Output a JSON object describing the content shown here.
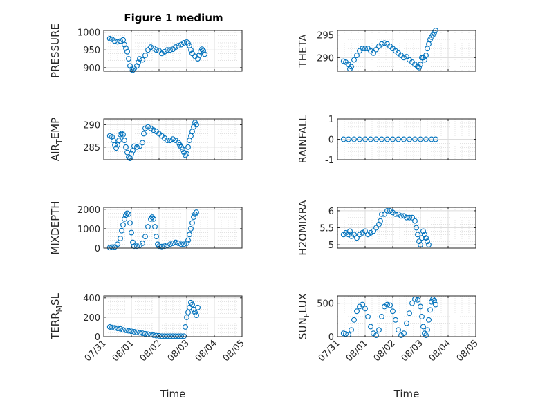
{
  "figure": {
    "title": "Figure 1 medium"
  },
  "chart_data": [
    {
      "type": "scatter",
      "ylabel": "PRESSURE",
      "yticks": [
        900,
        950,
        1000
      ],
      "ylim": [
        890,
        1005
      ],
      "xlim": [
        0,
        5
      ],
      "xticks": [
        0,
        1,
        2,
        3,
        4,
        5
      ],
      "grid": true,
      "points": [
        [
          0.22,
          982
        ],
        [
          0.3,
          980
        ],
        [
          0.4,
          975
        ],
        [
          0.5,
          973
        ],
        [
          0.6,
          975
        ],
        [
          0.7,
          978
        ],
        [
          0.75,
          965
        ],
        [
          0.8,
          955
        ],
        [
          0.85,
          945
        ],
        [
          0.9,
          925
        ],
        [
          0.95,
          905
        ],
        [
          1.0,
          895
        ],
        [
          1.05,
          893
        ],
        [
          1.1,
          898
        ],
        [
          1.2,
          905
        ],
        [
          1.25,
          915
        ],
        [
          1.3,
          925
        ],
        [
          1.4,
          922
        ],
        [
          1.5,
          935
        ],
        [
          1.6,
          950
        ],
        [
          1.7,
          958
        ],
        [
          1.8,
          955
        ],
        [
          1.9,
          950
        ],
        [
          2.0,
          948
        ],
        [
          2.1,
          940
        ],
        [
          2.2,
          945
        ],
        [
          2.3,
          950
        ],
        [
          2.4,
          950
        ],
        [
          2.5,
          952
        ],
        [
          2.6,
          958
        ],
        [
          2.7,
          962
        ],
        [
          2.8,
          965
        ],
        [
          2.9,
          970
        ],
        [
          3.0,
          972
        ],
        [
          3.05,
          968
        ],
        [
          3.1,
          962
        ],
        [
          3.15,
          950
        ],
        [
          3.2,
          940
        ],
        [
          3.3,
          932
        ],
        [
          3.4,
          925
        ],
        [
          3.45,
          935
        ],
        [
          3.5,
          945
        ],
        [
          3.55,
          952
        ],
        [
          3.6,
          948
        ],
        [
          3.65,
          938
        ]
      ]
    },
    {
      "type": "scatter",
      "ylabel": "THETA",
      "yticks": [
        290,
        295
      ],
      "ylim": [
        287,
        296
      ],
      "xlim": [
        0,
        5
      ],
      "xticks": [
        0,
        1,
        2,
        3,
        4,
        5
      ],
      "grid": true,
      "points": [
        [
          0.22,
          289.2
        ],
        [
          0.3,
          289
        ],
        [
          0.4,
          288.5
        ],
        [
          0.45,
          287.5
        ],
        [
          0.5,
          288
        ],
        [
          0.6,
          289.5
        ],
        [
          0.7,
          290.5
        ],
        [
          0.8,
          291.5
        ],
        [
          0.9,
          292
        ],
        [
          1.0,
          292
        ],
        [
          1.1,
          292
        ],
        [
          1.2,
          291.5
        ],
        [
          1.3,
          291
        ],
        [
          1.4,
          291.8
        ],
        [
          1.5,
          292.5
        ],
        [
          1.6,
          293
        ],
        [
          1.7,
          293.2
        ],
        [
          1.8,
          293
        ],
        [
          1.9,
          292.5
        ],
        [
          2.0,
          292
        ],
        [
          2.1,
          291.5
        ],
        [
          2.2,
          291
        ],
        [
          2.3,
          290.5
        ],
        [
          2.4,
          290
        ],
        [
          2.5,
          290.2
        ],
        [
          2.6,
          289.5
        ],
        [
          2.7,
          289
        ],
        [
          2.8,
          288.5
        ],
        [
          2.9,
          288
        ],
        [
          2.95,
          287.8
        ],
        [
          3.0,
          288.5
        ],
        [
          3.05,
          290
        ],
        [
          3.1,
          290
        ],
        [
          3.15,
          289.5
        ],
        [
          3.2,
          290.5
        ],
        [
          3.25,
          292
        ],
        [
          3.3,
          293
        ],
        [
          3.35,
          294
        ],
        [
          3.4,
          294.5
        ],
        [
          3.45,
          295
        ],
        [
          3.5,
          295.5
        ],
        [
          3.55,
          296
        ]
      ]
    },
    {
      "type": "scatter",
      "ylabel": "AIR_TEMP",
      "yticks": [
        285,
        290
      ],
      "ylim": [
        282.2,
        291.3
      ],
      "xlim": [
        0,
        5
      ],
      "xticks": [
        0,
        1,
        2,
        3,
        4,
        5
      ],
      "grid": true,
      "points": [
        [
          0.22,
          287.5
        ],
        [
          0.3,
          287.3
        ],
        [
          0.35,
          286.5
        ],
        [
          0.4,
          285.5
        ],
        [
          0.45,
          284.8
        ],
        [
          0.5,
          285.5
        ],
        [
          0.55,
          286.5
        ],
        [
          0.6,
          287.8
        ],
        [
          0.65,
          288
        ],
        [
          0.7,
          287.8
        ],
        [
          0.75,
          286.5
        ],
        [
          0.8,
          285
        ],
        [
          0.85,
          283.8
        ],
        [
          0.9,
          282.8
        ],
        [
          0.95,
          282.5
        ],
        [
          1.0,
          283.5
        ],
        [
          1.05,
          284.2
        ],
        [
          1.1,
          285.2
        ],
        [
          1.2,
          285
        ],
        [
          1.3,
          285.2
        ],
        [
          1.4,
          286
        ],
        [
          1.45,
          288
        ],
        [
          1.5,
          289.2
        ],
        [
          1.6,
          289.5
        ],
        [
          1.7,
          289.2
        ],
        [
          1.8,
          288.8
        ],
        [
          1.9,
          288.5
        ],
        [
          2.0,
          288
        ],
        [
          2.1,
          287.5
        ],
        [
          2.2,
          287
        ],
        [
          2.3,
          286.5
        ],
        [
          2.4,
          286.5
        ],
        [
          2.5,
          286.8
        ],
        [
          2.6,
          286.5
        ],
        [
          2.7,
          286
        ],
        [
          2.75,
          285.5
        ],
        [
          2.8,
          285
        ],
        [
          2.85,
          284.5
        ],
        [
          2.9,
          283.8
        ],
        [
          2.95,
          283.2
        ],
        [
          3.0,
          283.5
        ],
        [
          3.05,
          285
        ],
        [
          3.1,
          286.5
        ],
        [
          3.15,
          287.5
        ],
        [
          3.2,
          288.5
        ],
        [
          3.25,
          289.5
        ],
        [
          3.3,
          290.5
        ],
        [
          3.35,
          290
        ]
      ]
    },
    {
      "type": "scatter",
      "ylabel": "RAINFALL",
      "yticks": [
        -1,
        0,
        1
      ],
      "ylim": [
        -1,
        1
      ],
      "xlim": [
        0,
        5
      ],
      "xticks": [
        0,
        1,
        2,
        3,
        4,
        5
      ],
      "grid": true,
      "points": [
        [
          0.22,
          0
        ],
        [
          0.4,
          0
        ],
        [
          0.6,
          0
        ],
        [
          0.8,
          0
        ],
        [
          1.0,
          0
        ],
        [
          1.2,
          0
        ],
        [
          1.4,
          0
        ],
        [
          1.6,
          0
        ],
        [
          1.8,
          0
        ],
        [
          2.0,
          0
        ],
        [
          2.2,
          0
        ],
        [
          2.4,
          0
        ],
        [
          2.6,
          0
        ],
        [
          2.8,
          0
        ],
        [
          3.0,
          0
        ],
        [
          3.2,
          0
        ],
        [
          3.4,
          0
        ],
        [
          3.55,
          0
        ]
      ]
    },
    {
      "type": "scatter",
      "ylabel": "MIXDEPTH",
      "yticks": [
        0,
        1000,
        2000
      ],
      "ylim": [
        0,
        2100
      ],
      "xlim": [
        0,
        5
      ],
      "xticks": [
        0,
        1,
        2,
        3,
        4,
        5
      ],
      "grid": true,
      "points": [
        [
          0.22,
          30
        ],
        [
          0.3,
          50
        ],
        [
          0.4,
          60
        ],
        [
          0.5,
          200
        ],
        [
          0.6,
          500
        ],
        [
          0.65,
          900
        ],
        [
          0.7,
          1200
        ],
        [
          0.75,
          1500
        ],
        [
          0.8,
          1700
        ],
        [
          0.85,
          1800
        ],
        [
          0.9,
          1750
        ],
        [
          0.95,
          1300
        ],
        [
          1.0,
          800
        ],
        [
          1.05,
          300
        ],
        [
          1.1,
          100
        ],
        [
          1.2,
          100
        ],
        [
          1.3,
          150
        ],
        [
          1.4,
          250
        ],
        [
          1.5,
          600
        ],
        [
          1.6,
          1100
        ],
        [
          1.7,
          1500
        ],
        [
          1.75,
          1600
        ],
        [
          1.8,
          1500
        ],
        [
          1.85,
          1100
        ],
        [
          1.9,
          600
        ],
        [
          1.95,
          200
        ],
        [
          2.0,
          100
        ],
        [
          2.1,
          80
        ],
        [
          2.2,
          100
        ],
        [
          2.3,
          150
        ],
        [
          2.4,
          200
        ],
        [
          2.5,
          250
        ],
        [
          2.6,
          300
        ],
        [
          2.7,
          250
        ],
        [
          2.8,
          200
        ],
        [
          2.9,
          200
        ],
        [
          3.0,
          250
        ],
        [
          3.05,
          400
        ],
        [
          3.1,
          700
        ],
        [
          3.15,
          1000
        ],
        [
          3.2,
          1300
        ],
        [
          3.25,
          1600
        ],
        [
          3.3,
          1750
        ],
        [
          3.35,
          1850
        ]
      ]
    },
    {
      "type": "scatter",
      "ylabel": "H2OMIXRA",
      "yticks": [
        5,
        5.5,
        6
      ],
      "ylim": [
        4.9,
        6.1
      ],
      "xlim": [
        0,
        5
      ],
      "xticks": [
        0,
        1,
        2,
        3,
        4,
        5
      ],
      "grid": true,
      "points": [
        [
          0.22,
          5.3
        ],
        [
          0.3,
          5.35
        ],
        [
          0.4,
          5.3
        ],
        [
          0.45,
          5.4
        ],
        [
          0.5,
          5.25
        ],
        [
          0.6,
          5.3
        ],
        [
          0.7,
          5.2
        ],
        [
          0.8,
          5.3
        ],
        [
          0.9,
          5.35
        ],
        [
          1.0,
          5.4
        ],
        [
          1.1,
          5.3
        ],
        [
          1.2,
          5.35
        ],
        [
          1.3,
          5.4
        ],
        [
          1.4,
          5.5
        ],
        [
          1.5,
          5.6
        ],
        [
          1.55,
          5.7
        ],
        [
          1.6,
          5.9
        ],
        [
          1.7,
          5.9
        ],
        [
          1.8,
          6.0
        ],
        [
          1.9,
          6.0
        ],
        [
          2.0,
          5.95
        ],
        [
          2.1,
          5.9
        ],
        [
          2.2,
          5.9
        ],
        [
          2.3,
          5.85
        ],
        [
          2.4,
          5.85
        ],
        [
          2.5,
          5.8
        ],
        [
          2.6,
          5.8
        ],
        [
          2.7,
          5.8
        ],
        [
          2.8,
          5.7
        ],
        [
          2.85,
          5.5
        ],
        [
          2.9,
          5.3
        ],
        [
          2.95,
          5.1
        ],
        [
          3.0,
          5.0
        ],
        [
          3.05,
          5.2
        ],
        [
          3.1,
          5.4
        ],
        [
          3.15,
          5.3
        ],
        [
          3.2,
          5.2
        ],
        [
          3.25,
          5.1
        ],
        [
          3.3,
          5.0
        ]
      ]
    },
    {
      "type": "scatter",
      "ylabel": "TERR_MSL",
      "yticks": [
        0,
        200,
        400
      ],
      "ylim": [
        0,
        420
      ],
      "xlim": [
        0,
        5
      ],
      "xticks": [
        0,
        1,
        2,
        3,
        4,
        5
      ],
      "grid": true,
      "xticklabels": [
        "07/31",
        "08/01",
        "08/02",
        "08/03",
        "08/04",
        "08/05"
      ],
      "xlabel": "Time",
      "points": [
        [
          0.22,
          100
        ],
        [
          0.3,
          95
        ],
        [
          0.4,
          90
        ],
        [
          0.5,
          85
        ],
        [
          0.6,
          80
        ],
        [
          0.7,
          70
        ],
        [
          0.8,
          65
        ],
        [
          0.9,
          60
        ],
        [
          1.0,
          55
        ],
        [
          1.1,
          50
        ],
        [
          1.2,
          45
        ],
        [
          1.3,
          40
        ],
        [
          1.4,
          35
        ],
        [
          1.5,
          30
        ],
        [
          1.6,
          25
        ],
        [
          1.7,
          20
        ],
        [
          1.8,
          15
        ],
        [
          1.9,
          10
        ],
        [
          2.0,
          8
        ],
        [
          2.1,
          5
        ],
        [
          2.2,
          5
        ],
        [
          2.3,
          5
        ],
        [
          2.4,
          5
        ],
        [
          2.5,
          5
        ],
        [
          2.6,
          5
        ],
        [
          2.7,
          5
        ],
        [
          2.8,
          5
        ],
        [
          2.9,
          5
        ],
        [
          2.95,
          100
        ],
        [
          3.0,
          200
        ],
        [
          3.05,
          250
        ],
        [
          3.1,
          300
        ],
        [
          3.15,
          350
        ],
        [
          3.2,
          330
        ],
        [
          3.25,
          280
        ],
        [
          3.3,
          250
        ],
        [
          3.35,
          220
        ],
        [
          3.4,
          300
        ]
      ]
    },
    {
      "type": "scatter",
      "ylabel": "SUN_FLUX",
      "yticks": [
        0,
        500
      ],
      "ylim": [
        0,
        610
      ],
      "xlim": [
        0,
        5
      ],
      "xticks": [
        0,
        1,
        2,
        3,
        4,
        5
      ],
      "grid": true,
      "xticklabels": [
        "07/31",
        "08/01",
        "08/02",
        "08/03",
        "08/04",
        "08/05"
      ],
      "xlabel": "Time",
      "points": [
        [
          0.22,
          50
        ],
        [
          0.3,
          40
        ],
        [
          0.4,
          30
        ],
        [
          0.5,
          100
        ],
        [
          0.6,
          250
        ],
        [
          0.7,
          380
        ],
        [
          0.8,
          450
        ],
        [
          0.9,
          480
        ],
        [
          1.0,
          420
        ],
        [
          1.1,
          300
        ],
        [
          1.2,
          150
        ],
        [
          1.3,
          50
        ],
        [
          1.4,
          20
        ],
        [
          1.5,
          100
        ],
        [
          1.6,
          300
        ],
        [
          1.7,
          450
        ],
        [
          1.8,
          480
        ],
        [
          1.9,
          470
        ],
        [
          2.0,
          380
        ],
        [
          2.1,
          250
        ],
        [
          2.2,
          100
        ],
        [
          2.3,
          20
        ],
        [
          2.4,
          50
        ],
        [
          2.5,
          200
        ],
        [
          2.6,
          350
        ],
        [
          2.7,
          500
        ],
        [
          2.8,
          560
        ],
        [
          2.9,
          550
        ],
        [
          3.0,
          450
        ],
        [
          3.05,
          300
        ],
        [
          3.1,
          150
        ],
        [
          3.15,
          50
        ],
        [
          3.2,
          20
        ],
        [
          3.25,
          100
        ],
        [
          3.3,
          250
        ],
        [
          3.35,
          400
        ],
        [
          3.4,
          520
        ],
        [
          3.45,
          560
        ],
        [
          3.5,
          540
        ],
        [
          3.55,
          480
        ]
      ]
    }
  ]
}
